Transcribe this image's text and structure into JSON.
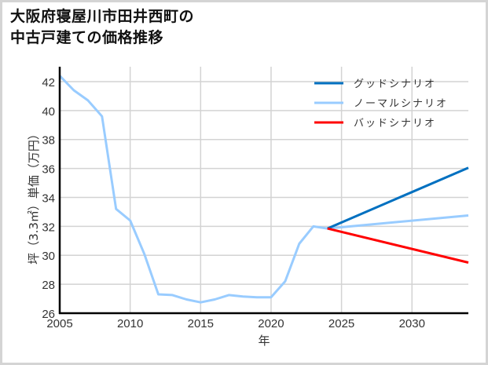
{
  "chart_data": {
    "type": "line",
    "title": "大阪府寝屋川市田井西町の中古戸建ての価格推移",
    "title_lines": [
      "大阪府寝屋川市田井西町の",
      "中古戸建ての価格推移"
    ],
    "xlabel": "年",
    "ylabel": "坪（3.3㎡）単価（万円）",
    "xlim": [
      2005,
      2034
    ],
    "ylim": [
      26,
      43
    ],
    "x_ticks": [
      2005,
      2010,
      2015,
      2020,
      2025,
      2030
    ],
    "y_ticks": [
      26,
      28,
      30,
      32,
      34,
      36,
      38,
      40,
      42
    ],
    "grid": true,
    "legend_position": "upper right",
    "series": [
      {
        "name": "グッドシナリオ",
        "color": "#0070c0",
        "x": [
          2024,
          2034
        ],
        "values": [
          31.85,
          36.05
        ]
      },
      {
        "name": "ノーマルシナリオ",
        "color": "#99ccff",
        "x": [
          2005,
          2006,
          2007,
          2008,
          2009,
          2010,
          2011,
          2012,
          2013,
          2014,
          2015,
          2016,
          2017,
          2018,
          2019,
          2020,
          2021,
          2022,
          2023,
          2024,
          2034
        ],
        "values": [
          42.4,
          41.4,
          40.7,
          39.6,
          33.2,
          32.4,
          30.1,
          27.3,
          27.25,
          26.95,
          26.75,
          26.95,
          27.25,
          27.15,
          27.1,
          27.1,
          28.2,
          30.8,
          32.0,
          31.85,
          32.75
        ]
      },
      {
        "name": "バッドシナリオ",
        "color": "#ff0000",
        "x": [
          2024,
          2034
        ],
        "values": [
          31.85,
          29.5
        ]
      }
    ]
  }
}
